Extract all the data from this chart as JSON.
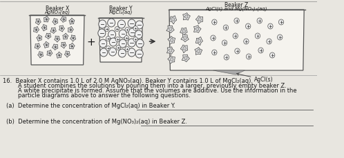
{
  "bg": "#e8e6e0",
  "beaker_fill": "#f5f3ee",
  "beaker_edge": "#555555",
  "text_color": "#1a1a1a",
  "bx_title": "Beaker X",
  "bx_sub": "AgNO₃(aq)",
  "by_title": "Beaker Y",
  "by_sub": "MgCl₂(aq)",
  "bz_title": "Beaker Z",
  "bz_sub": "AgCl(s) and Mg(NO₃)₂(aq)",
  "agcl_label": "AgCl(s)",
  "line1": "16.  Beaker X contains 1.0 L of 2.0 M AgNO₃(aq). Beaker Y contains 1.0 L of MgCl₂(aq).",
  "line2": "     A student combines the solutions by pouring them into a larger, previously empty beaker Z.",
  "line3": "     A white precipitate is formed. Assume that the volumes are additive. Use the information in the",
  "line4": "     particle diagrams above to answer the following questions.",
  "qa": "(a)  Determine the concentration of MgCl₂(aq) in Beaker Y.",
  "qb": "(b)  Determine the concentration of Mg(NO₃)₂(aq) in Beaker Z."
}
